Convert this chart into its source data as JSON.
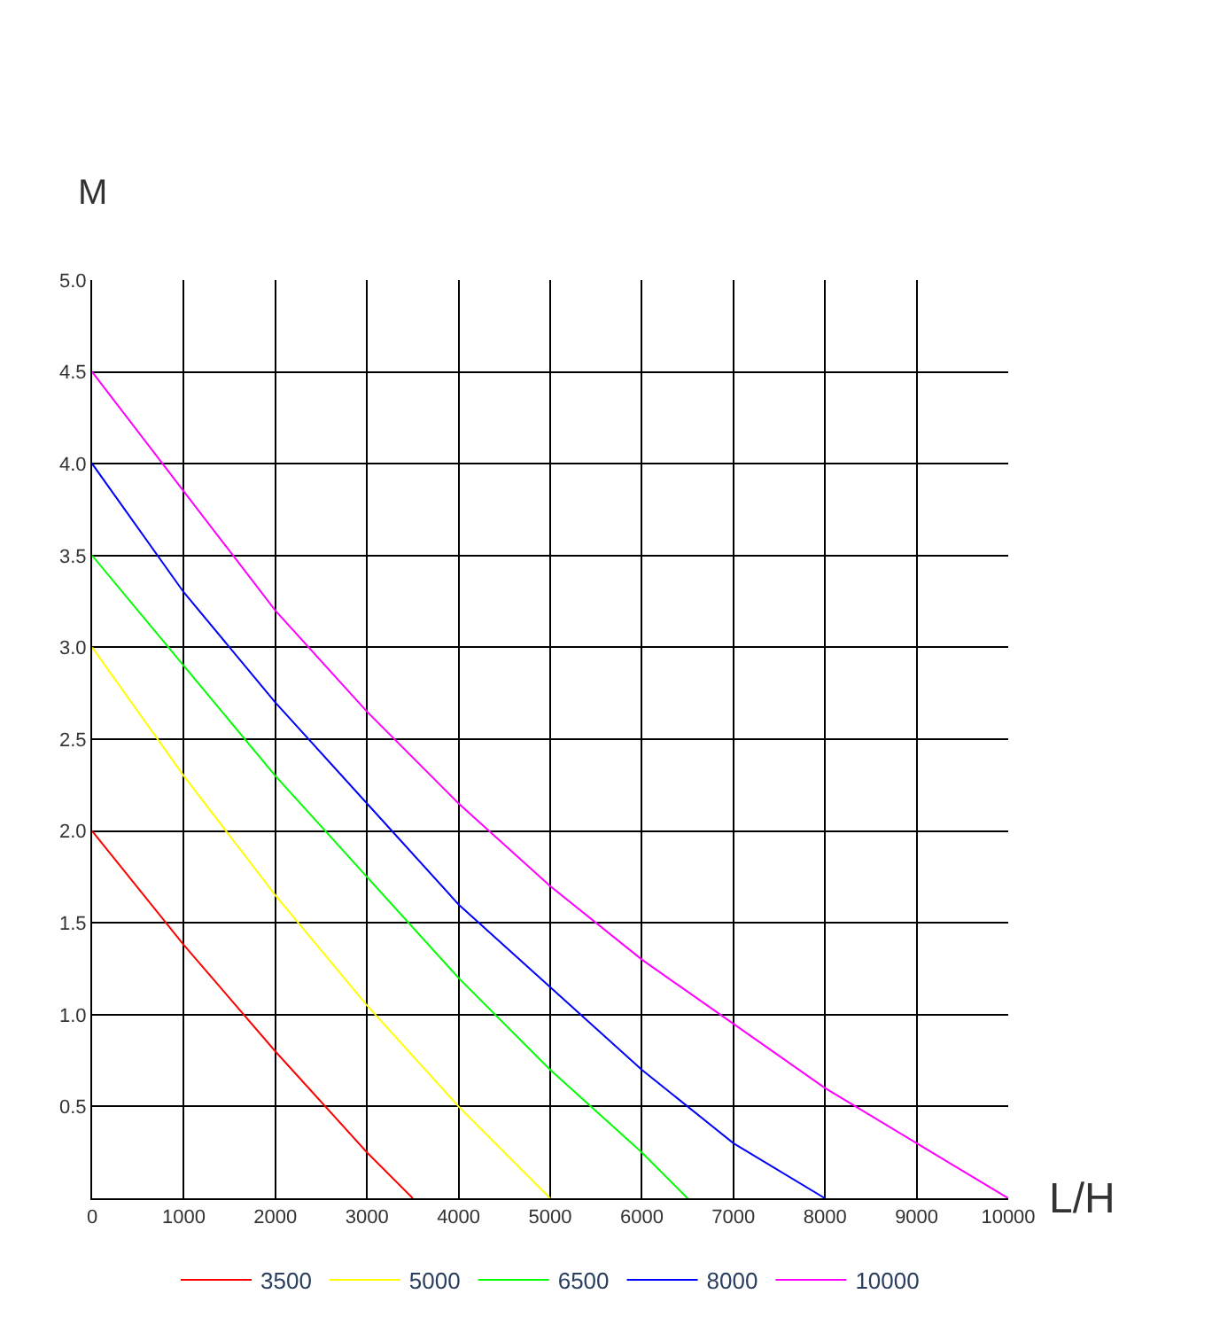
{
  "chart_data": {
    "type": "line",
    "xlabel": "L/H",
    "ylabel": "M",
    "xlim": [
      0,
      10000
    ],
    "ylim": [
      0,
      5
    ],
    "xticks": [
      0,
      1000,
      2000,
      3000,
      4000,
      5000,
      6000,
      7000,
      8000,
      9000,
      10000
    ],
    "yticks": [
      {
        "value": 0.5,
        "label": "0.5"
      },
      {
        "value": 1,
        "label": "1.0"
      },
      {
        "value": 1.5,
        "label": "1.5"
      },
      {
        "value": 2,
        "label": "2.0"
      },
      {
        "value": 2.5,
        "label": "2.5"
      },
      {
        "value": 3,
        "label": "3.0"
      },
      {
        "value": 3.5,
        "label": "3.5"
      },
      {
        "value": 4,
        "label": "4.0"
      },
      {
        "value": 4.5,
        "label": "4.5"
      },
      {
        "value": 5,
        "label": "5.0"
      }
    ],
    "grid": true,
    "legend": "bottom",
    "marker": "none",
    "line_style": "solid",
    "series": [
      {
        "name": "3500",
        "color": "#ff0000",
        "x": [
          0,
          1000,
          2000,
          3000,
          3500
        ],
        "values": [
          2.0,
          1.38,
          0.8,
          0.25,
          0
        ]
      },
      {
        "name": "5000",
        "color": "#ffff00",
        "x": [
          0,
          1000,
          2000,
          3000,
          4000,
          5000
        ],
        "values": [
          3.0,
          2.3,
          1.65,
          1.05,
          0.5,
          0
        ]
      },
      {
        "name": "6500",
        "color": "#00ff00",
        "x": [
          0,
          1000,
          2000,
          3000,
          4000,
          5000,
          6000,
          6500
        ],
        "values": [
          3.5,
          2.9,
          2.3,
          1.75,
          1.2,
          0.7,
          0.25,
          0
        ]
      },
      {
        "name": "8000",
        "color": "#0000ff",
        "x": [
          0,
          1000,
          2000,
          3000,
          4000,
          5000,
          6000,
          7000,
          8000
        ],
        "values": [
          4.0,
          3.3,
          2.7,
          2.15,
          1.6,
          1.15,
          0.7,
          0.3,
          0
        ]
      },
      {
        "name": "10000",
        "color": "#ff00ff",
        "x": [
          0,
          1000,
          2000,
          3000,
          4000,
          5000,
          6000,
          7000,
          8000,
          9000,
          10000
        ],
        "values": [
          4.5,
          3.85,
          3.2,
          2.65,
          2.15,
          1.7,
          1.3,
          0.95,
          0.6,
          0.3,
          0
        ]
      }
    ]
  }
}
